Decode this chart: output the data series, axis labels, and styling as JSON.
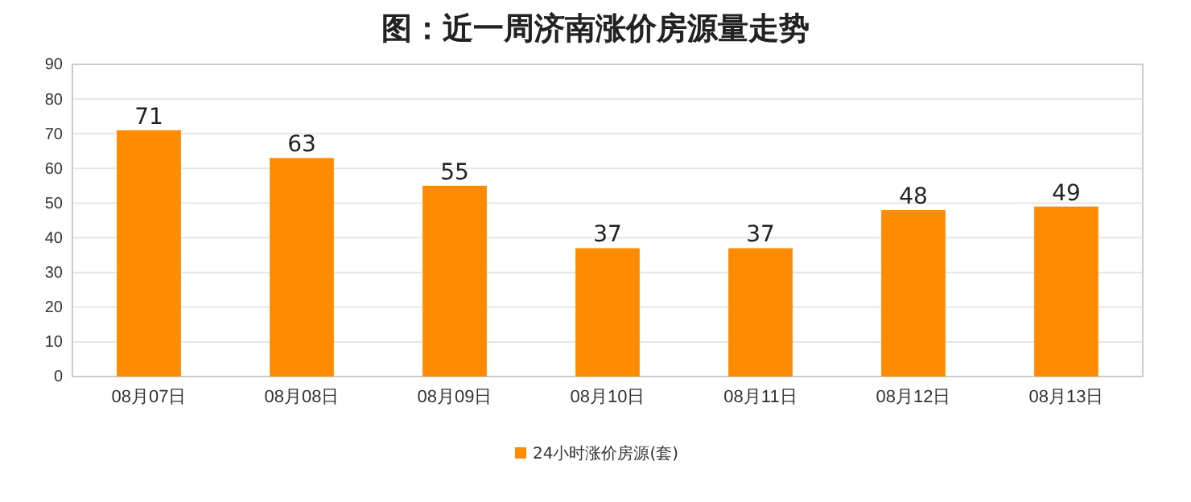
{
  "chart_data": {
    "type": "bar",
    "title": "图：近一周济南涨价房源量走势",
    "categories": [
      "08月07日",
      "08月08日",
      "08月09日",
      "08月10日",
      "08月11日",
      "08月12日",
      "08月13日"
    ],
    "series": [
      {
        "name": "24小时涨价房源(套)",
        "color": "#ff8c00",
        "values": [
          71,
          63,
          55,
          37,
          37,
          48,
          49
        ]
      }
    ],
    "ylim": [
      0,
      90
    ],
    "yticks": [
      0,
      10,
      20,
      30,
      40,
      50,
      60,
      70,
      80,
      90
    ],
    "grid": "y",
    "legend": "bottom",
    "data_labels": true
  }
}
